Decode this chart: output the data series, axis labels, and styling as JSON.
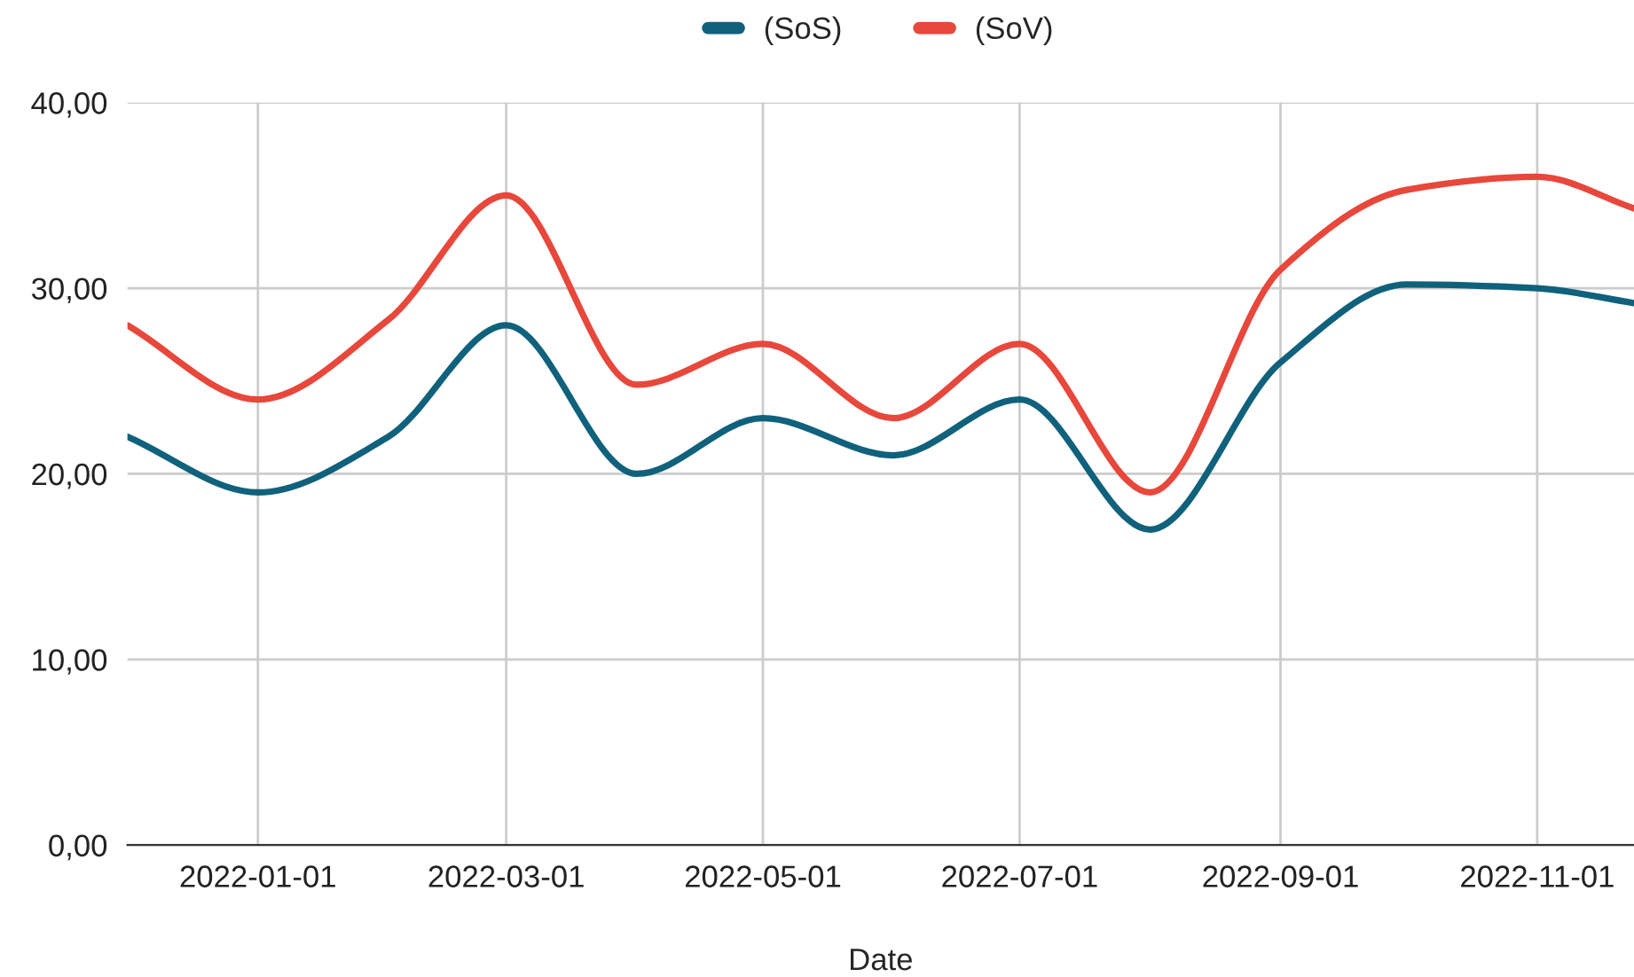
{
  "chart_data": {
    "type": "line",
    "xlabel": "Date",
    "legend": "top",
    "grid": true,
    "marker": "none",
    "line_style": "solid",
    "x": [
      "2021-12-01",
      "2022-01-01",
      "2022-02-01",
      "2022-03-01",
      "2022-04-01",
      "2022-05-01",
      "2022-06-01",
      "2022-07-01",
      "2022-08-01",
      "2022-09-01",
      "2022-10-01",
      "2022-11-01",
      "2022-11-24"
    ],
    "series": [
      {
        "name": "(SoS)",
        "color": "#10617c",
        "values": [
          22,
          19,
          22,
          28,
          20,
          23,
          21,
          24,
          17,
          26,
          30.2,
          30,
          29.2
        ]
      },
      {
        "name": "(SoV)",
        "color": "#e8473b",
        "values": [
          28,
          24,
          28.3,
          35,
          24.8,
          27,
          23,
          27,
          19,
          31,
          35.3,
          36,
          34.3
        ]
      }
    ],
    "xlim": [
      "2021-12-01",
      "2022-11-24"
    ],
    "xticks": [
      "2022-01-01",
      "2022-03-01",
      "2022-05-01",
      "2022-07-01",
      "2022-09-01",
      "2022-11-01"
    ],
    "ylim": [
      0,
      40
    ],
    "yticks": [
      {
        "value": 0,
        "label": "0,00"
      },
      {
        "value": 10,
        "label": "10,00"
      },
      {
        "value": 20,
        "label": "20,00"
      },
      {
        "value": 30,
        "label": "30,00"
      },
      {
        "value": 40,
        "label": "40,00"
      }
    ]
  }
}
